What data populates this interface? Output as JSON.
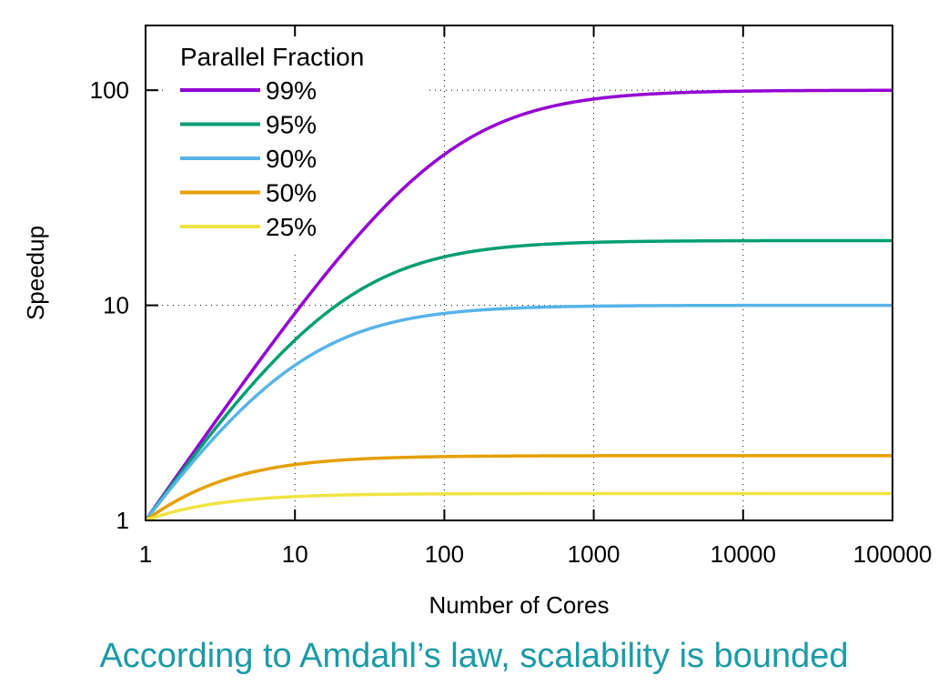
{
  "chart_data": {
    "type": "line",
    "xlabel": "Number of Cores",
    "ylabel": "Speedup",
    "x_scale": "log",
    "y_scale": "log",
    "xlim": [
      1,
      100000
    ],
    "ylim": [
      1,
      200
    ],
    "x_ticks": [
      "1",
      "10",
      "100",
      "1000",
      "10000",
      "100000"
    ],
    "y_ticks": [
      "1",
      "10",
      "100"
    ],
    "grid": "dotted",
    "legend": {
      "title": "Parallel Fraction",
      "position": "top-left"
    },
    "series": [
      {
        "name": "99%",
        "parallel_fraction": 0.99,
        "color": "#9400d3",
        "x": [
          1,
          10,
          100,
          1000,
          10000,
          100000
        ],
        "values": [
          1,
          9.17,
          50.25,
          90.99,
          99.02,
          99.9
        ]
      },
      {
        "name": "95%",
        "parallel_fraction": 0.95,
        "color": "#009e73",
        "x": [
          1,
          10,
          100,
          1000,
          10000,
          100000
        ],
        "values": [
          1,
          6.9,
          16.81,
          19.63,
          19.96,
          20.0
        ]
      },
      {
        "name": "90%",
        "parallel_fraction": 0.9,
        "color": "#56b4e9",
        "x": [
          1,
          10,
          100,
          1000,
          10000,
          100000
        ],
        "values": [
          1,
          5.26,
          9.17,
          9.91,
          9.99,
          10.0
        ]
      },
      {
        "name": "50%",
        "parallel_fraction": 0.5,
        "color": "#e69f00",
        "x": [
          1,
          10,
          100,
          1000,
          10000,
          100000
        ],
        "values": [
          1,
          1.82,
          1.98,
          2.0,
          2.0,
          2.0
        ]
      },
      {
        "name": "25%",
        "parallel_fraction": 0.25,
        "color": "#f0e442",
        "x": [
          1,
          10,
          100,
          1000,
          10000,
          100000
        ],
        "values": [
          1,
          1.29,
          1.33,
          1.33,
          1.33,
          1.33
        ]
      }
    ]
  },
  "caption": "According to Amdahl’s law, scalability is bounded"
}
